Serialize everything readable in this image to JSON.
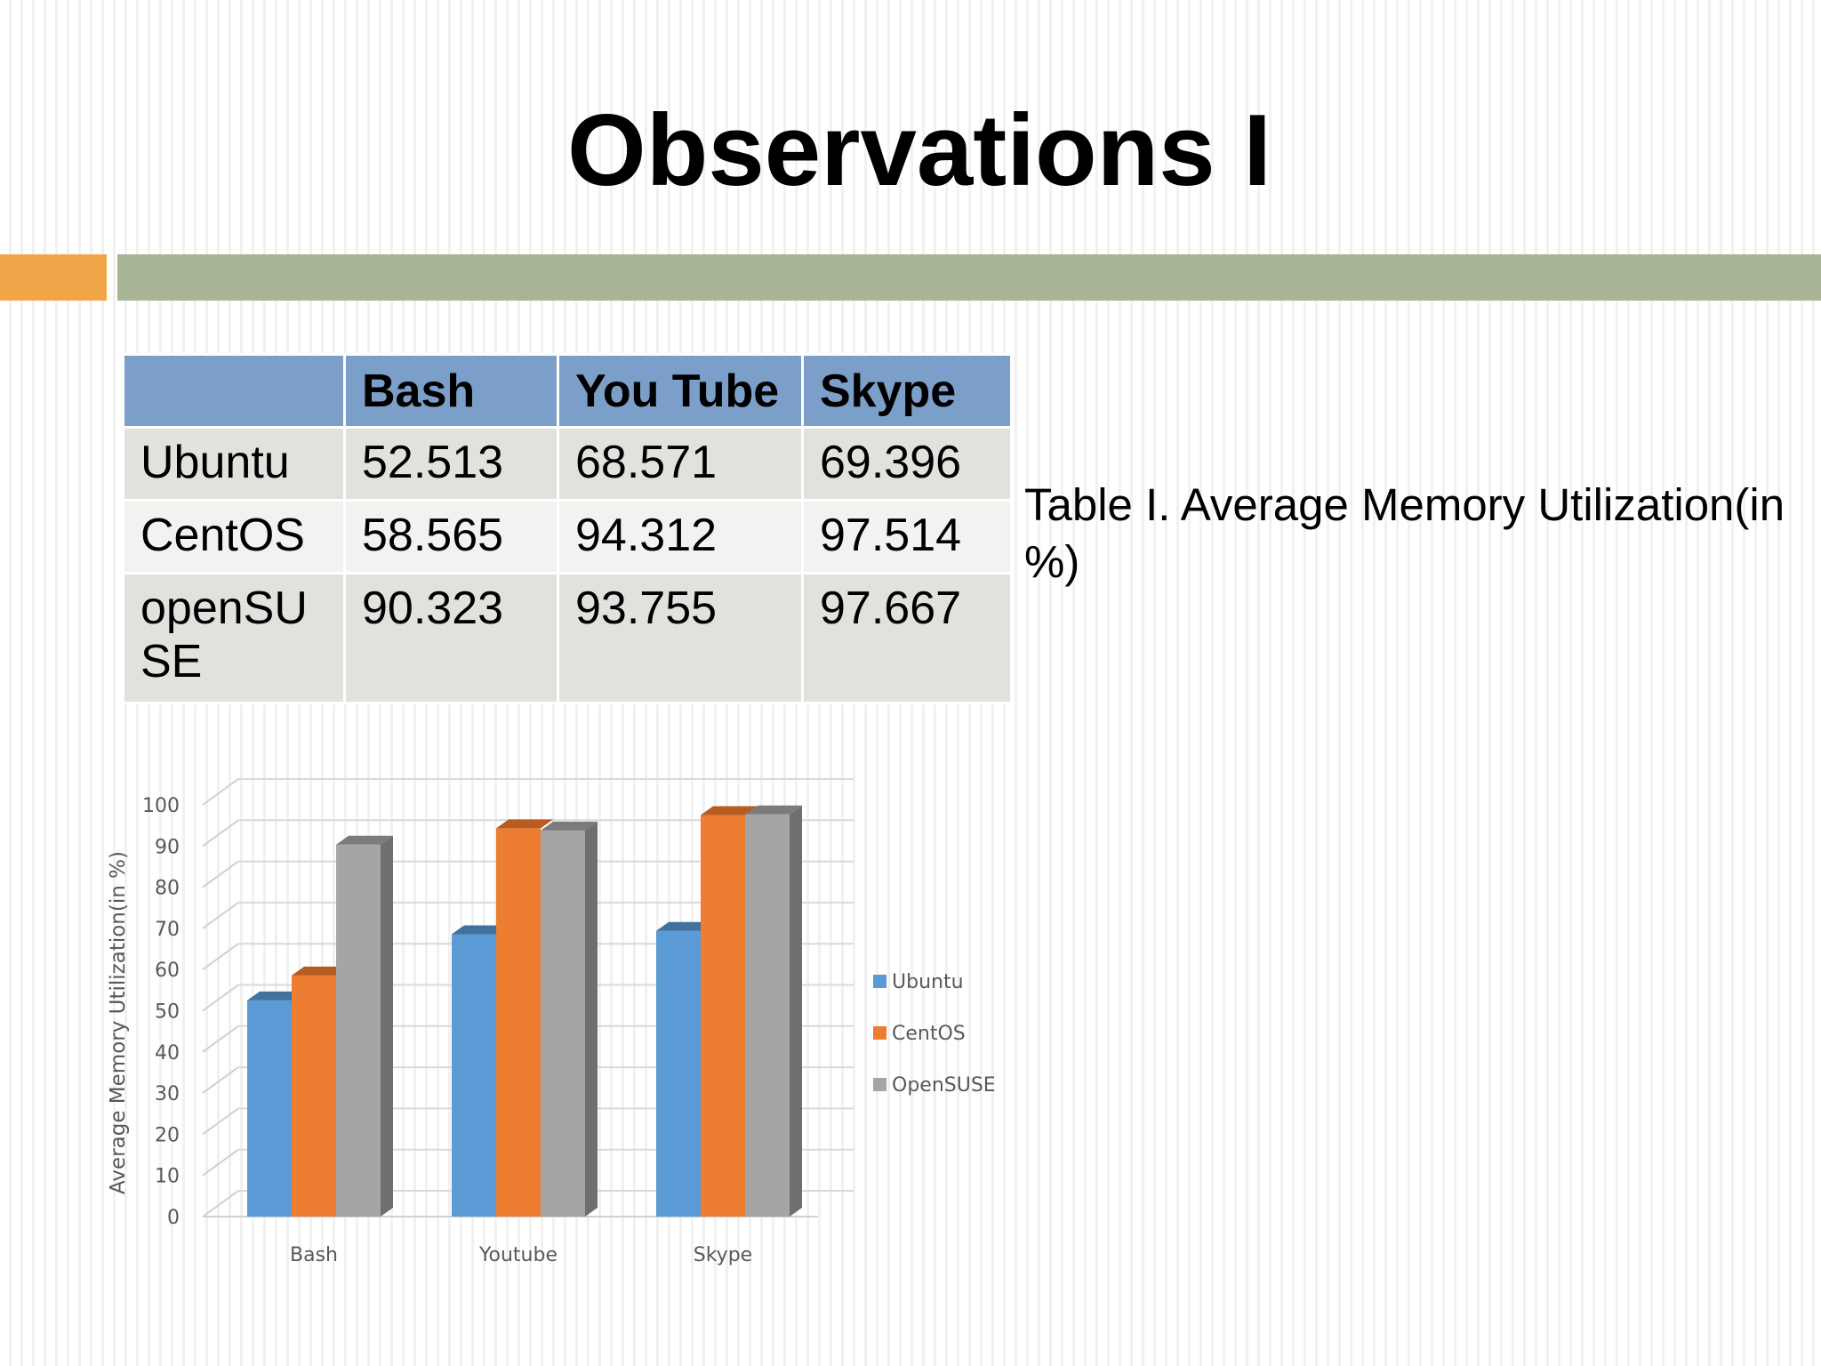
{
  "slide": {
    "title": "Observations I",
    "caption": "Table I. Average Memory Utilization(in %)",
    "accent_colors": {
      "orange": "#f0a648",
      "green": "#a7b595"
    }
  },
  "table": {
    "header_fill": "#7c9fc9",
    "columns": [
      "",
      "Bash",
      "You Tube",
      "Skype"
    ],
    "rows": [
      {
        "label": "Ubuntu",
        "values": [
          "52.513",
          "68.571",
          "69.396"
        ]
      },
      {
        "label": "CentOS",
        "values": [
          "58.565",
          "94.312",
          "97.514"
        ]
      },
      {
        "label": "openSU SE",
        "values": [
          "90.323",
          "93.755",
          "97.667"
        ]
      }
    ]
  },
  "chart_data": {
    "type": "bar",
    "style": "3d-clustered-column",
    "categories": [
      "Bash",
      "Youtube",
      "Skype"
    ],
    "series": [
      {
        "name": "Ubuntu",
        "values": [
          52.513,
          68.571,
          69.396
        ],
        "color": "#5b9bd5",
        "top_color": "#41719c"
      },
      {
        "name": "CentOS",
        "values": [
          58.565,
          94.312,
          97.514
        ],
        "color": "#ed7d31",
        "top_color": "#b85c21"
      },
      {
        "name": "OpenSUSE",
        "values": [
          90.323,
          93.755,
          97.667
        ],
        "color": "#a5a5a5",
        "top_color": "#7b7b7b"
      }
    ],
    "ylabel": "Average Memory Utilization(in %)",
    "xlabel": "",
    "ylim": [
      0,
      100
    ],
    "yticks": [
      0,
      10,
      20,
      30,
      40,
      50,
      60,
      70,
      80,
      90,
      100
    ],
    "grid": true,
    "legend_position": "right"
  }
}
